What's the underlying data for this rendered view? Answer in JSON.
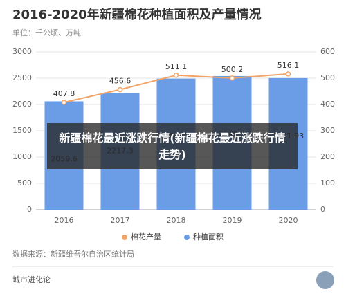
{
  "chart_data": {
    "type": "bar-line",
    "title": "2016-2020年新疆棉花种植面积及产量情况",
    "subtitle": "单位：千公顷、万吨",
    "categories": [
      "2016",
      "2017",
      "2018",
      "2019",
      "2020"
    ],
    "series": [
      {
        "name": "种植面积",
        "color": "#6a9de6",
        "type": "bar",
        "values": [
          2059.6,
          2217.3,
          2491.3,
          2540.5,
          2501.93
        ]
      },
      {
        "name": "棉花产量",
        "color": "#f2a468",
        "type": "line",
        "axis": "y2",
        "values": [
          407.8,
          456.6,
          511.1,
          500.2,
          516.1
        ]
      }
    ],
    "ylim": [
      0,
      3000
    ],
    "yticks": [
      0,
      500,
      1000,
      1500,
      2000,
      2500,
      3000
    ],
    "y2lim": [
      0,
      600
    ],
    "y2ticks": [
      0,
      100,
      200,
      300,
      400,
      500,
      600
    ],
    "grid": true,
    "legend": "bottom",
    "source": "数据来源：新疆维吾尔自治区统计局",
    "footer": "城市进化论",
    "overlay": "新疆棉花最近涨跌行情(新疆棉花最近涨跌行情走势)"
  }
}
